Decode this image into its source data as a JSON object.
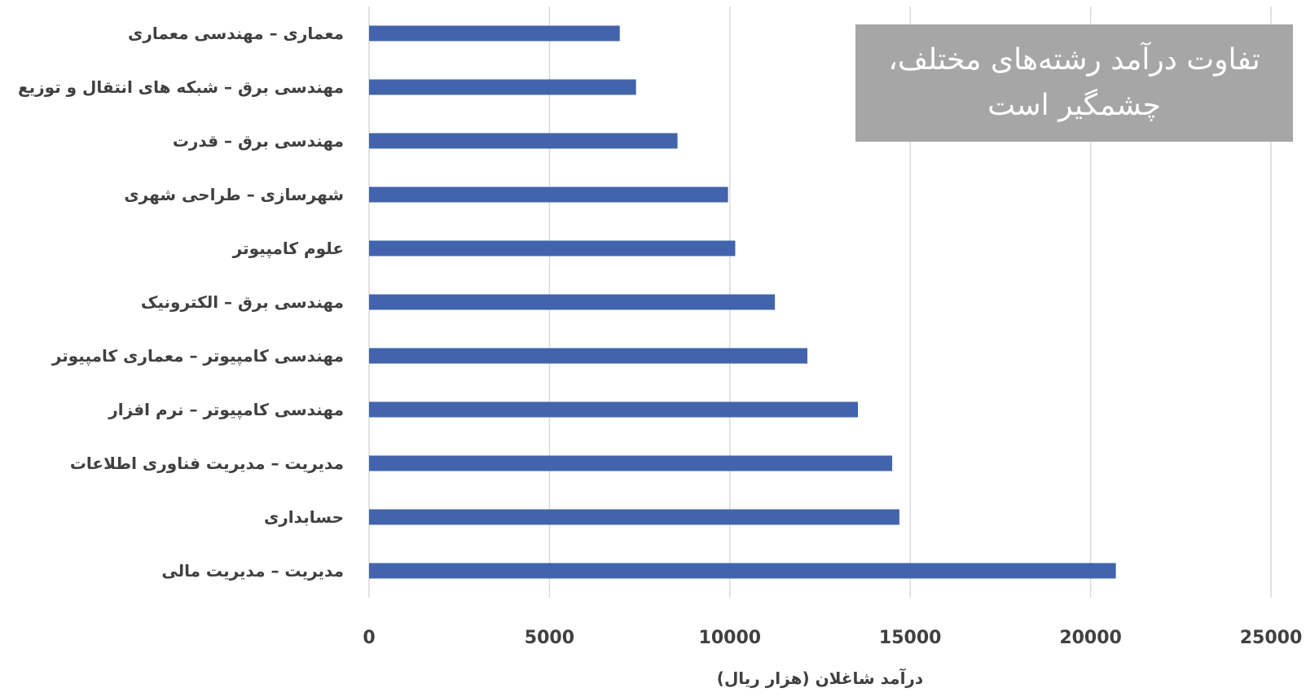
{
  "chart_data": {
    "type": "bar",
    "orientation": "horizontal",
    "title": "تفاوت درآمد رشته‌های مختلف، چشمگیر است",
    "xlabel": "درآمد شاغلان (هزار ریال)",
    "ylabel": "",
    "xlim": [
      0,
      25000
    ],
    "xticks": [
      0,
      5000,
      10000,
      15000,
      20000,
      25000
    ],
    "xtick_labels": [
      "0",
      "5000",
      "10000",
      "15000",
      "20000",
      "25000"
    ],
    "grid": "vertical",
    "bar_color": "#4164ad",
    "categories": [
      "معماری – مهندسی معماری",
      "مهندسی برق – شبکه های انتقال و توزیع",
      "مهندسی برق – قدرت",
      "شهرسازی – طراحی شهری",
      "علوم کامپیوتر",
      "مهندسی برق – الکترونیک",
      "مهندسی کامپیوتر – معماری کامپیوتر",
      "مهندسی کامپیوتر – نرم افزار",
      "مدیریت – مدیریت فناوری اطلاعات",
      "حسابداری",
      "مدیریت – مدیریت مالی"
    ],
    "values": [
      6950,
      7400,
      8550,
      9950,
      10150,
      11250,
      12150,
      13550,
      14500,
      14700,
      20700
    ]
  }
}
